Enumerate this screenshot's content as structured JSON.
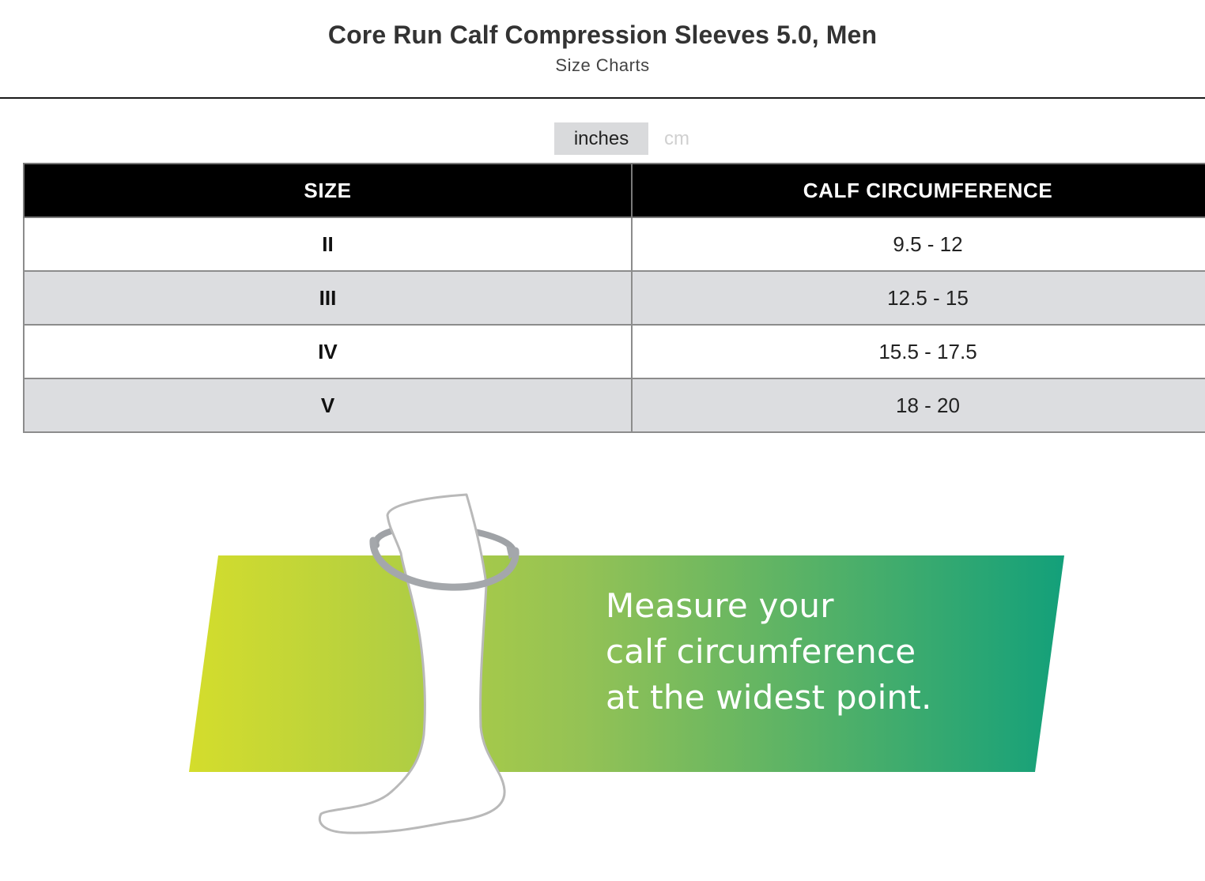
{
  "header": {
    "title": "Core Run Calf Compression Sleeves 5.0, Men",
    "subtitle": "Size Charts"
  },
  "units": {
    "options": [
      {
        "label": "inches",
        "selected": true
      },
      {
        "label": "cm",
        "selected": false
      }
    ]
  },
  "table": {
    "columns": [
      "SIZE",
      "CALF CIRCUMFERENCE"
    ],
    "rows": [
      {
        "size": "II",
        "calf": "9.5 - 12"
      },
      {
        "size": "III",
        "calf": "12.5 - 15"
      },
      {
        "size": "IV",
        "calf": "15.5 - 17.5"
      },
      {
        "size": "V",
        "calf": "18 - 20"
      }
    ]
  },
  "illustration": {
    "lines": [
      "Measure your",
      "calf circumference",
      "at the widest point."
    ],
    "gradient_start": "#d4dd2c",
    "gradient_end": "#13a07a",
    "icon": "leg-measure-icon"
  }
}
